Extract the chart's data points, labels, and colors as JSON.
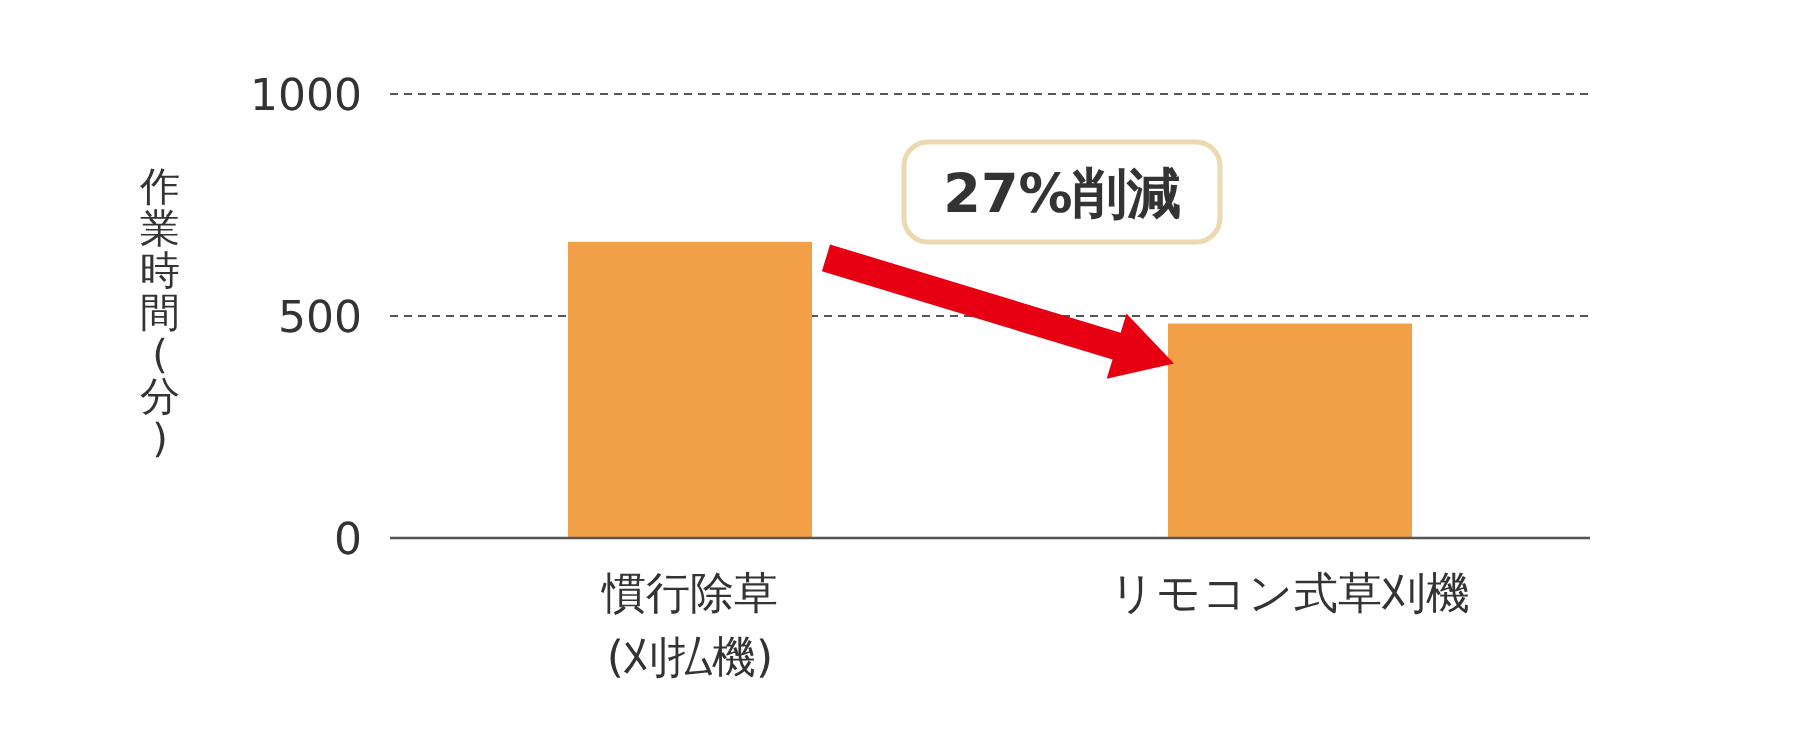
{
  "chart_data": {
    "type": "bar",
    "ylabel": "作業時間(分)",
    "categories": [
      "慣行除草\n(刈払機)",
      "リモコン式草刈機"
    ],
    "series": [
      {
        "color": "#f2a047",
        "values": [
          667,
          483
        ]
      }
    ],
    "ylim": [
      0,
      1000
    ],
    "yticks": [
      0,
      500,
      1000
    ],
    "grid": "y",
    "annotations": [
      "27%削減"
    ]
  }
}
